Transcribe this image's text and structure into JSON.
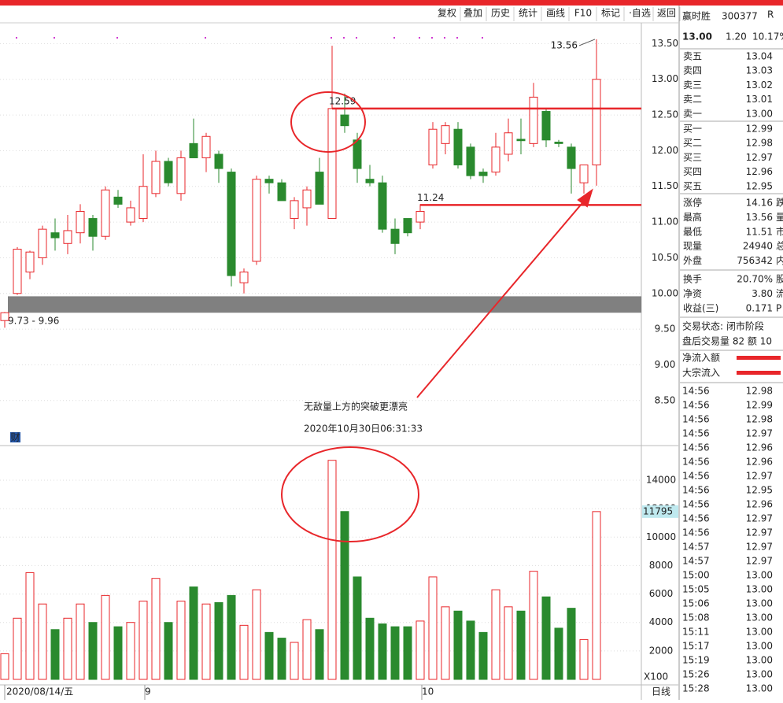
{
  "toolbar": [
    "复权",
    "叠加",
    "历史",
    "统计",
    "画线",
    "F10",
    "标记",
    "·自选",
    "返回"
  ],
  "quote": {
    "name": "赢时胜",
    "code": "300377",
    "flag": "R",
    "price": "13.00",
    "change": "1.20",
    "pct": "10.17%",
    "book": [
      [
        "卖五",
        "13.04"
      ],
      [
        "卖四",
        "13.03"
      ],
      [
        "卖三",
        "13.02"
      ],
      [
        "卖二",
        "13.01"
      ],
      [
        "卖一",
        "13.00"
      ],
      [
        "买一",
        "12.99"
      ],
      [
        "买二",
        "12.98"
      ],
      [
        "买三",
        "12.97"
      ],
      [
        "买四",
        "12.96"
      ],
      [
        "买五",
        "12.95"
      ]
    ],
    "stats": [
      [
        "涨停",
        "14.16",
        "跌"
      ],
      [
        "最高",
        "13.56",
        "量"
      ],
      [
        "最低",
        "11.51",
        "市"
      ],
      [
        "现量",
        "24940",
        "总"
      ],
      [
        "外盘",
        "756342",
        "内"
      ]
    ],
    "stats2": [
      [
        "换手",
        "20.70%",
        "股"
      ],
      [
        "净资",
        "3.80",
        "流"
      ],
      [
        "收益(三)",
        "0.171",
        "P"
      ]
    ],
    "status": [
      "交易状态: 闭市阶段",
      "盘后交易量 82 额 10"
    ],
    "flows": [
      "净流入额",
      "大宗流入"
    ],
    "ticks": [
      [
        "14:56",
        "12.98"
      ],
      [
        "14:56",
        "12.99"
      ],
      [
        "14:56",
        "12.98"
      ],
      [
        "14:56",
        "12.97"
      ],
      [
        "14:56",
        "12.96"
      ],
      [
        "14:56",
        "12.96"
      ],
      [
        "14:56",
        "12.97"
      ],
      [
        "14:56",
        "12.95"
      ],
      [
        "14:56",
        "12.96"
      ],
      [
        "14:56",
        "12.97"
      ],
      [
        "14:56",
        "12.97"
      ],
      [
        "14:57",
        "12.97"
      ],
      [
        "14:57",
        "12.97"
      ],
      [
        "15:00",
        "13.00"
      ],
      [
        "15:05",
        "13.00"
      ],
      [
        "15:06",
        "13.00"
      ],
      [
        "15:08",
        "13.00"
      ],
      [
        "15:11",
        "13.00"
      ],
      [
        "15:17",
        "13.00"
      ],
      [
        "15:19",
        "13.00"
      ],
      [
        "15:26",
        "13.00"
      ],
      [
        "15:28",
        "13.00"
      ]
    ]
  },
  "chart_data": [
    {
      "type": "candlestick",
      "color_up": "#e8262a",
      "color_down": "#2a8a2e",
      "open": [
        9.62,
        10.0,
        10.3,
        10.5,
        10.85,
        10.7,
        10.85,
        11.05,
        10.8,
        11.35,
        11.0,
        11.05,
        11.4,
        11.85,
        11.4,
        12.1,
        11.9,
        11.95,
        11.7,
        10.15,
        10.45,
        11.6,
        11.55,
        11.05,
        11.2,
        11.7,
        11.05,
        12.5,
        12.15,
        11.6,
        11.55,
        10.9,
        11.05,
        11.0,
        11.8,
        12.1,
        12.3,
        12.05,
        11.7,
        11.7,
        11.95,
        12.16,
        12.1,
        12.55,
        12.12,
        12.05,
        11.55,
        11.8
      ],
      "high": [
        9.74,
        10.65,
        10.6,
        10.95,
        11.05,
        11.1,
        11.25,
        11.1,
        11.5,
        11.45,
        11.3,
        11.95,
        12.0,
        11.9,
        12.0,
        12.45,
        12.25,
        12.0,
        11.75,
        10.35,
        11.65,
        11.65,
        11.6,
        11.35,
        11.5,
        11.9,
        13.47,
        12.8,
        12.25,
        11.8,
        11.65,
        11.05,
        11.05,
        11.25,
        12.4,
        12.4,
        12.4,
        12.1,
        11.75,
        12.25,
        12.45,
        12.45,
        12.95,
        12.6,
        12.15,
        12.1,
        11.8,
        13.56
      ],
      "low": [
        9.52,
        9.98,
        10.2,
        10.4,
        10.6,
        10.55,
        10.7,
        10.6,
        10.75,
        11.2,
        10.95,
        11.0,
        11.35,
        11.5,
        11.3,
        11.9,
        11.7,
        11.55,
        10.1,
        10.0,
        10.4,
        11.4,
        11.3,
        10.9,
        10.95,
        11.25,
        11.05,
        12.25,
        11.55,
        11.5,
        10.85,
        10.55,
        10.8,
        10.9,
        11.75,
        11.95,
        11.75,
        11.6,
        11.55,
        11.65,
        11.85,
        11.95,
        12.05,
        12.05,
        12.05,
        11.4,
        11.4,
        11.51
      ],
      "close": [
        9.73,
        10.62,
        10.58,
        10.9,
        10.78,
        10.88,
        11.15,
        10.8,
        11.45,
        11.25,
        11.2,
        11.5,
        11.85,
        11.55,
        11.9,
        11.9,
        12.2,
        11.75,
        10.25,
        10.3,
        11.6,
        11.55,
        11.3,
        11.3,
        11.45,
        11.25,
        12.59,
        12.35,
        11.75,
        11.55,
        10.9,
        10.7,
        10.85,
        11.15,
        12.3,
        12.35,
        11.8,
        11.65,
        11.65,
        12.05,
        12.25,
        12.14,
        12.75,
        12.15,
        12.1,
        11.75,
        11.8,
        13.0
      ],
      "ylim": [
        7.88,
        13.78
      ],
      "yticks": [
        {
          "value": 13.5,
          "label": "13.50"
        },
        {
          "value": 13,
          "label": "13.00"
        },
        {
          "value": 12.5,
          "label": "12.50"
        },
        {
          "value": 12,
          "label": "12.00"
        },
        {
          "value": 11.5,
          "label": "11.50"
        },
        {
          "value": 11,
          "label": "11.00"
        },
        {
          "value": 10.5,
          "label": "10.50"
        },
        {
          "value": 10,
          "label": "10.00"
        },
        {
          "value": 9.5,
          "label": "9.50"
        },
        {
          "value": 9,
          "label": "9.00"
        },
        {
          "value": 8.5,
          "label": "8.50"
        }
      ],
      "grid": true,
      "resistance": {
        "label": "12.59",
        "value": 12.59
      },
      "support": {
        "label": "11.24",
        "value": 11.24
      },
      "peak": {
        "label": "13.56",
        "value": 13.56
      },
      "band": {
        "label": "9.73 - 9.96",
        "low": 9.73,
        "high": 9.96
      },
      "note": [
        "无敌量上方的突破更漂亮",
        "2020年10月30日06:31:33"
      ],
      "badge": "财"
    },
    {
      "type": "bar",
      "values": [
        1800,
        4300,
        7500,
        5300,
        3500,
        4300,
        5300,
        4000,
        5900,
        3700,
        4000,
        5500,
        7100,
        4000,
        5500,
        6500,
        5300,
        5400,
        5900,
        3800,
        6300,
        3300,
        2900,
        2600,
        4200,
        3500,
        15400,
        11800,
        7200,
        4300,
        3900,
        3700,
        3700,
        4100,
        7200,
        5100,
        4800,
        4100,
        3300,
        6300,
        5100,
        4800,
        7600,
        5800,
        3600,
        5000,
        2800,
        11795
      ],
      "current": {
        "label": "11795",
        "value": 11795
      },
      "ylim": [
        0,
        16380
      ],
      "yticks": [
        2000,
        4000,
        6000,
        8000,
        10000,
        12000,
        14000
      ],
      "grid": true,
      "unit": "X100",
      "period": "日线",
      "x_labels": [
        {
          "label": "2020/08/14/五",
          "index": 0
        },
        {
          "label": "9",
          "index": 11
        },
        {
          "label": "10",
          "index": 33
        }
      ]
    }
  ]
}
